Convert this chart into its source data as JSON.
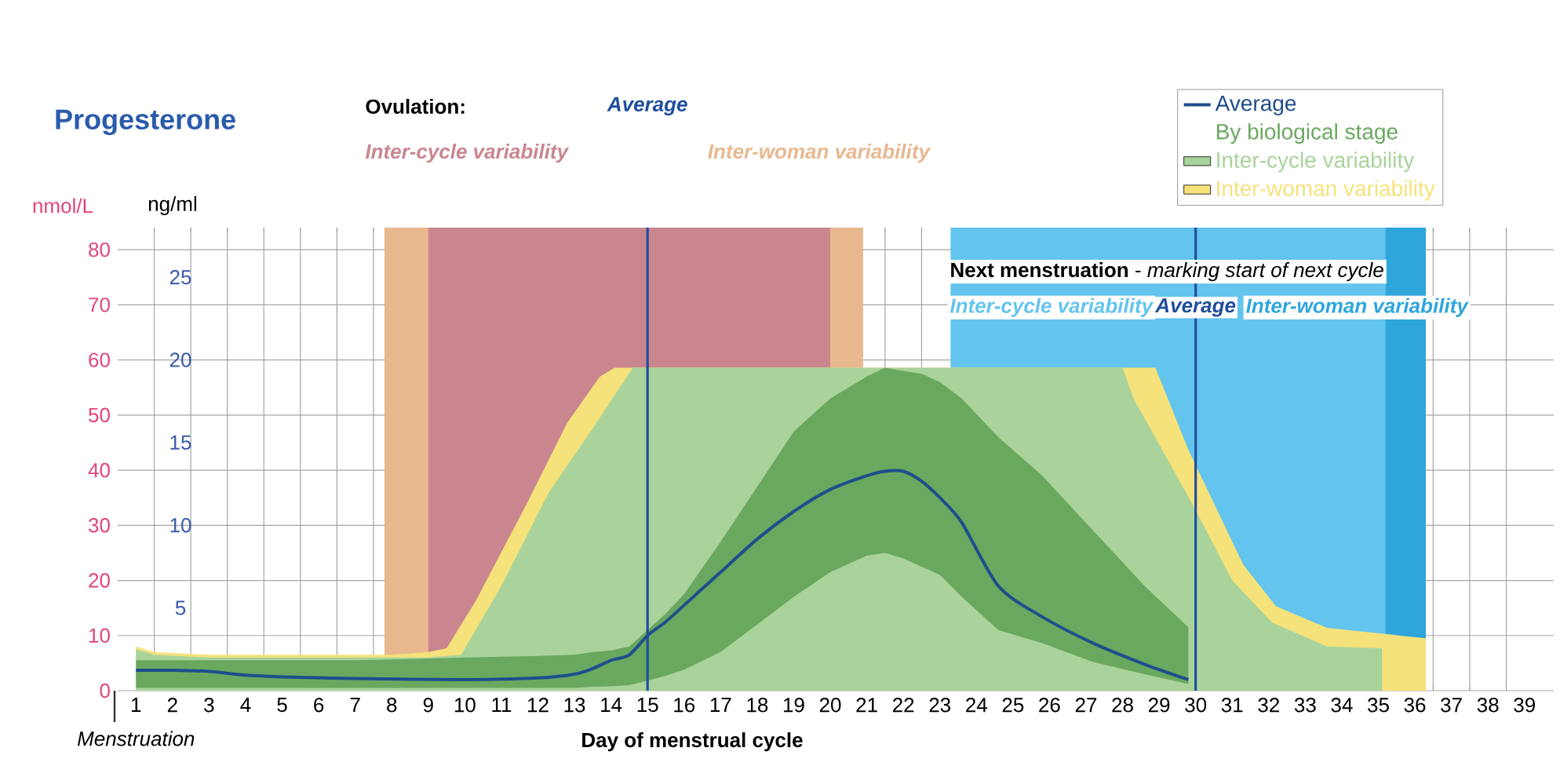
{
  "chart_data": {
    "type": "line",
    "title": "Progesterone",
    "xlabel": "Day of menstrual cycle",
    "ylabel": "nmol/L",
    "y2label": "ng/ml",
    "xlim": [
      0.5,
      39.8
    ],
    "ylim": [
      0,
      84
    ],
    "y2lim": [
      0,
      28
    ],
    "xticks": [
      1,
      2,
      3,
      4,
      5,
      6,
      7,
      8,
      9,
      10,
      11,
      12,
      13,
      14,
      15,
      16,
      17,
      18,
      19,
      20,
      21,
      22,
      23,
      24,
      25,
      26,
      27,
      28,
      29,
      30,
      31,
      32,
      33,
      34,
      35,
      36,
      37,
      38,
      39
    ],
    "yticks": [
      0,
      10,
      20,
      30,
      40,
      50,
      60,
      70,
      80
    ],
    "y2ticks": [
      5,
      10,
      15,
      20,
      25
    ],
    "grid": true,
    "legend": "top right",
    "series": [
      {
        "name": "Inter-woman variability",
        "type": "area",
        "color": "#f5e27a",
        "x": [
          1,
          1.5,
          3,
          8,
          9,
          9.5,
          10.3,
          11.7,
          12.8,
          13.7,
          14.1,
          28.9,
          29.8,
          30.5,
          31.3,
          32.2,
          33.6,
          36.3
        ],
        "values": [
          8,
          7,
          6.5,
          6.5,
          7,
          7.7,
          16.3,
          34,
          48.6,
          57,
          58.6,
          58.6,
          43.7,
          34,
          22.9,
          15.3,
          11.4,
          9.5
        ]
      },
      {
        "name": "Inter-cycle variability",
        "type": "area",
        "color": "#a9d39b",
        "x": [
          1,
          1.5,
          3,
          9,
          9.9,
          11,
          12.3,
          13.5,
          14.6,
          28,
          28.3,
          29.9,
          31,
          32.1,
          33.6,
          35.1
        ],
        "values": [
          7.5,
          6.5,
          6,
          6,
          6.5,
          19,
          36,
          47.6,
          58.6,
          58.6,
          53,
          34,
          20,
          12.3,
          8,
          7.7
        ]
      },
      {
        "name": "Average",
        "color": "#1f4e8c",
        "upper": [
          5.5,
          5.5,
          5.5,
          5.5,
          5.5,
          5.5,
          6,
          6.3,
          6.5,
          7,
          7.3,
          8,
          11,
          14,
          17.5,
          27,
          37,
          47,
          53,
          57,
          58.6,
          58,
          57.5,
          56,
          53,
          46,
          39,
          29,
          19,
          11.5
        ],
        "lower": [
          0.5,
          0.5,
          0.5,
          0.5,
          0.5,
          0.5,
          0.5,
          0.5,
          0.5,
          0.7,
          0.8,
          1,
          1.8,
          2.7,
          3.8,
          7,
          12,
          17,
          21.5,
          24.5,
          25,
          24,
          22.5,
          21,
          17,
          11,
          8.6,
          5.2,
          3,
          1.2
        ],
        "x": [
          1,
          2,
          3,
          4,
          5,
          7,
          10,
          12,
          13,
          13.5,
          14,
          14.5,
          15,
          15.5,
          16,
          17,
          18,
          19,
          20,
          21,
          21.5,
          22,
          22.5,
          23,
          23.6,
          24.6,
          25.8,
          27.2,
          28.6,
          29.8
        ],
        "values": [
          3.7,
          3.7,
          3.5,
          2.8,
          2.5,
          2.2,
          2,
          2.3,
          3,
          4,
          5.5,
          6.5,
          10,
          12.5,
          15.5,
          21.5,
          27.5,
          32.5,
          36.5,
          39,
          39.8,
          39.8,
          38,
          35,
          30.5,
          19,
          13.4,
          8.6,
          4.8,
          2
        ]
      }
    ],
    "bands": [
      {
        "axis": "x",
        "from": 7.8,
        "to": 20.9,
        "label": "Inter-woman variability",
        "color": "#e8b88f"
      },
      {
        "axis": "x",
        "from": 9,
        "to": 20,
        "label": "Inter-cycle variability",
        "color": "#c9868f"
      },
      {
        "axis": "x",
        "from": 23.3,
        "to": 36.3,
        "label": "Inter-woman variability",
        "color": "#2ea6dc"
      },
      {
        "axis": "x",
        "from": 23.3,
        "to": 35.2,
        "label": "Inter-cycle variability",
        "color": "#63c4ee"
      }
    ],
    "ref_lines": [
      {
        "axis": "x",
        "value": 15,
        "label": "Average",
        "color": "#1f4e9c"
      },
      {
        "axis": "x",
        "value": 30,
        "label": "Average",
        "color": "#1f4e9c"
      }
    ],
    "annotations": [
      "Ovulation:",
      "**Next menstruation** - *marking start of next cycle*",
      "Menstruation",
      "By biological stage"
    ]
  }
}
